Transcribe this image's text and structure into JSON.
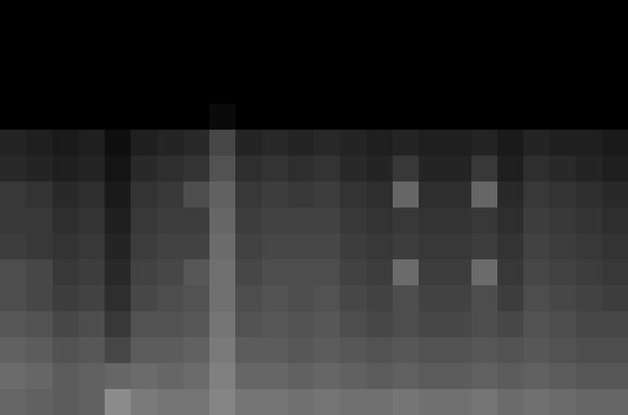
{
  "chart_data": {
    "type": "heatmap",
    "tick_labels": false,
    "grid": false,
    "color": "#ffffff",
    "color_range": [
      0,
      100
    ],
    "cells": [
      [
        0,
        0,
        0,
        0,
        0,
        0,
        0,
        0,
        0,
        0,
        0,
        0,
        0,
        0,
        0,
        0,
        0,
        0,
        0,
        0,
        0,
        0,
        0,
        0
      ],
      [
        0,
        0,
        0,
        0,
        0,
        0,
        0,
        0,
        0,
        0,
        0,
        0,
        0,
        0,
        0,
        0,
        0,
        0,
        0,
        0,
        0,
        0,
        0,
        0
      ],
      [
        0,
        0,
        0,
        0,
        0,
        0,
        0,
        0,
        0,
        0,
        0,
        0,
        0,
        0,
        0,
        0,
        0,
        0,
        0,
        0,
        0,
        0,
        0,
        0
      ],
      [
        0,
        0,
        0,
        0,
        0,
        0,
        0,
        0,
        0,
        0,
        0,
        0,
        0,
        0,
        0,
        0,
        0,
        0,
        0,
        0,
        0,
        0,
        0,
        0
      ],
      [
        0,
        0,
        0,
        0,
        0,
        0,
        0,
        0,
        4,
        0,
        0,
        0,
        0,
        0,
        0,
        0,
        0,
        0,
        0,
        0,
        0,
        0,
        0,
        0
      ],
      [
        14,
        12,
        10,
        12,
        6,
        12,
        14,
        16,
        28,
        14,
        16,
        14,
        16,
        14,
        12,
        14,
        12,
        12,
        14,
        10,
        14,
        12,
        12,
        10
      ],
      [
        16,
        14,
        12,
        14,
        8,
        16,
        18,
        20,
        32,
        18,
        20,
        18,
        20,
        16,
        14,
        22,
        14,
        14,
        22,
        12,
        18,
        16,
        14,
        12
      ],
      [
        22,
        20,
        16,
        18,
        10,
        20,
        22,
        30,
        38,
        22,
        24,
        22,
        24,
        20,
        18,
        40,
        18,
        18,
        40,
        16,
        22,
        20,
        18,
        16
      ],
      [
        22,
        22,
        18,
        20,
        12,
        22,
        24,
        24,
        40,
        24,
        26,
        26,
        26,
        22,
        20,
        22,
        20,
        20,
        22,
        18,
        24,
        22,
        20,
        18
      ],
      [
        24,
        22,
        20,
        22,
        14,
        24,
        26,
        26,
        42,
        26,
        28,
        28,
        28,
        24,
        22,
        24,
        22,
        22,
        24,
        20,
        26,
        24,
        22,
        20
      ],
      [
        30,
        28,
        22,
        24,
        16,
        26,
        28,
        34,
        44,
        28,
        30,
        30,
        30,
        26,
        24,
        42,
        24,
        24,
        42,
        22,
        28,
        26,
        24,
        22
      ],
      [
        30,
        28,
        24,
        26,
        18,
        28,
        30,
        32,
        44,
        30,
        32,
        30,
        32,
        28,
        26,
        30,
        26,
        26,
        30,
        24,
        30,
        28,
        26,
        24
      ],
      [
        34,
        32,
        28,
        30,
        22,
        32,
        32,
        34,
        46,
        32,
        34,
        32,
        34,
        30,
        28,
        30,
        28,
        28,
        30,
        28,
        32,
        30,
        28,
        28
      ],
      [
        38,
        36,
        32,
        34,
        28,
        36,
        36,
        38,
        48,
        36,
        36,
        34,
        36,
        34,
        32,
        34,
        32,
        32,
        34,
        32,
        34,
        32,
        30,
        30
      ],
      [
        42,
        40,
        36,
        38,
        40,
        42,
        40,
        42,
        50,
        40,
        40,
        38,
        40,
        38,
        36,
        38,
        36,
        36,
        38,
        36,
        38,
        36,
        34,
        34
      ],
      [
        40,
        38,
        36,
        38,
        55,
        48,
        46,
        46,
        52,
        46,
        46,
        44,
        46,
        44,
        44,
        46,
        44,
        44,
        46,
        42,
        44,
        42,
        40,
        40
      ]
    ]
  }
}
